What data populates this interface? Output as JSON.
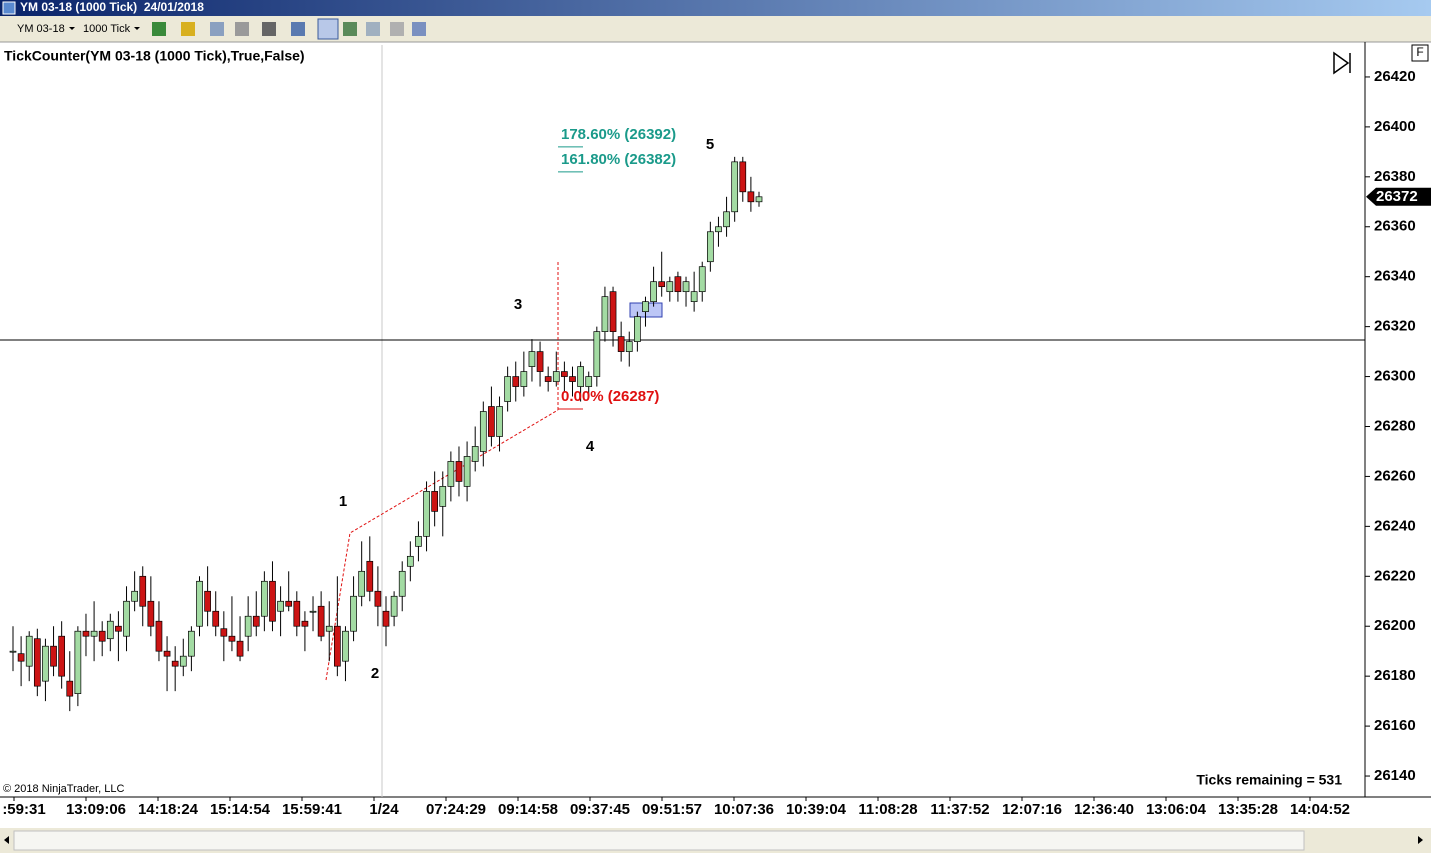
{
  "window": {
    "title": "YM 03-18 (1000 Tick)  24/01/2018",
    "toolbar": [
      "YM 03-18",
      "1000 Tick"
    ],
    "panel_button": "F"
  },
  "chart_data": {
    "type": "candlestick",
    "title": "TickCounter(YM 03-18 (1000 Tick),True,False)",
    "open": [
      26190,
      26189,
      26184,
      26195,
      26178,
      26192,
      26196,
      26178,
      26173,
      26198,
      26196,
      26198,
      26195,
      26200,
      26196,
      26210,
      26220,
      26210,
      26202,
      26190,
      26186,
      26184,
      26188,
      26200,
      26214,
      26206,
      26199,
      26196,
      26194,
      26196,
      26204,
      26204,
      26218,
      26206,
      26210,
      26210,
      26202,
      26206,
      26208,
      26198,
      26200,
      26186,
      26198,
      26212,
      26226,
      26214,
      26206,
      26204,
      26212,
      26224,
      26232,
      26236,
      26254,
      26248,
      26256,
      26266,
      26256,
      26266,
      26270,
      26288,
      26276,
      26290,
      26300,
      26296,
      26304,
      26310,
      26300,
      26298,
      26302,
      26300,
      26296,
      26296,
      26300,
      26318,
      26334,
      26316,
      26310,
      26314,
      26326,
      26330,
      26338,
      26334,
      26340,
      26334,
      26330,
      26334,
      26346,
      26358,
      26360,
      26366,
      26386,
      26374,
      26370
    ],
    "high": [
      26200,
      26196,
      26198,
      26199,
      26195,
      26200,
      26202,
      26190,
      26200,
      26205,
      26210,
      26202,
      26205,
      26206,
      26216,
      26222,
      26224,
      26220,
      26210,
      26196,
      26192,
      26195,
      26200,
      26220,
      26224,
      26214,
      26206,
      26212,
      26204,
      26212,
      26214,
      26222,
      26226,
      26216,
      26222,
      26214,
      26206,
      26212,
      26214,
      26210,
      26220,
      26200,
      26220,
      26234,
      26236,
      26224,
      26212,
      26214,
      26226,
      26234,
      26242,
      26258,
      26262,
      26262,
      26270,
      26272,
      26274,
      26280,
      26290,
      26296,
      26292,
      26304,
      26306,
      26310,
      26315,
      26314,
      26304,
      26310,
      26306,
      26304,
      26306,
      26302,
      26320,
      26336,
      26336,
      26322,
      26318,
      26326,
      26332,
      26344,
      26350,
      26340,
      26342,
      26340,
      26342,
      26346,
      26362,
      26364,
      26372,
      26388,
      26388,
      26380,
      26374
    ],
    "low": [
      26182,
      26176,
      26178,
      26172,
      26170,
      26180,
      26175,
      26166,
      26168,
      26188,
      26186,
      26188,
      26190,
      26186,
      26190,
      26206,
      26200,
      26196,
      26186,
      26174,
      26174,
      26180,
      26182,
      26196,
      26200,
      26196,
      26186,
      26190,
      26186,
      26190,
      26196,
      26198,
      26198,
      26196,
      26206,
      26196,
      26190,
      26198,
      26194,
      26186,
      26180,
      26178,
      26194,
      26208,
      26210,
      26200,
      26192,
      26200,
      26206,
      26218,
      26226,
      26230,
      26240,
      26236,
      26250,
      26252,
      26250,
      26262,
      26264,
      26272,
      26270,
      26286,
      26290,
      26292,
      26298,
      26296,
      26294,
      26296,
      26294,
      26292,
      26290,
      26292,
      26296,
      26314,
      26312,
      26306,
      26304,
      26310,
      26320,
      26328,
      26332,
      26330,
      26330,
      26328,
      26326,
      26330,
      26342,
      26352,
      26356,
      26362,
      26370,
      26366,
      26368
    ],
    "close": [
      26190,
      26186,
      26196,
      26176,
      26192,
      26184,
      26180,
      26172,
      26198,
      26196,
      26198,
      26194,
      26202,
      26198,
      26210,
      26214,
      26208,
      26200,
      26190,
      26188,
      26184,
      26188,
      26198,
      26218,
      26206,
      26200,
      26196,
      26194,
      26188,
      26204,
      26200,
      26218,
      26202,
      26210,
      26208,
      26200,
      26200,
      26206,
      26196,
      26200,
      26184,
      26198,
      26212,
      26222,
      26214,
      26208,
      26200,
      26212,
      26222,
      26228,
      26236,
      26254,
      26246,
      26256,
      26266,
      26258,
      26268,
      26272,
      26286,
      26276,
      26288,
      26300,
      26296,
      26302,
      26310,
      26302,
      26298,
      26302,
      26300,
      26298,
      26304,
      26300,
      26318,
      26332,
      26318,
      26310,
      26314,
      26324,
      26330,
      26338,
      26336,
      26338,
      26334,
      26338,
      26334,
      26344,
      26358,
      26360,
      26366,
      26386,
      26374,
      26370,
      26372
    ],
    "up_color": "#a3dba3",
    "down_color": "#cc1414",
    "wick_color": "#000000",
    "ylim": [
      26131.6,
      26434
    ],
    "yticks": [
      26140,
      26160,
      26180,
      26200,
      26220,
      26240,
      26260,
      26280,
      26300,
      26320,
      26340,
      26360,
      26380,
      26400,
      26420
    ],
    "last_price": 26372,
    "x_labels": [
      ":59:31",
      "13:09:06",
      "14:18:24",
      "15:14:54",
      "15:59:41",
      "1/24",
      "07:24:29",
      "09:14:58",
      "09:37:45",
      "09:51:57",
      "10:07:36",
      "10:39:04",
      "11:08:28",
      "11:37:52",
      "12:07:16",
      "12:36:40",
      "13:06:04",
      "13:35:28",
      "14:04:52"
    ],
    "fib_levels": [
      {
        "value": 26392,
        "label": "178.60% (26392)",
        "color": "#1a9a8a"
      },
      {
        "value": 26382,
        "label": "161.80% (26382)",
        "color": "#1a9a8a"
      },
      {
        "value": 26287,
        "label": "0.00% (26287)",
        "color": "#e01010"
      }
    ],
    "wave_labels": [
      "1",
      "2",
      "3",
      "4",
      "5"
    ],
    "status_text": "Ticks remaining = 531",
    "copyright": "© 2018 NinjaTrader, LLC"
  }
}
